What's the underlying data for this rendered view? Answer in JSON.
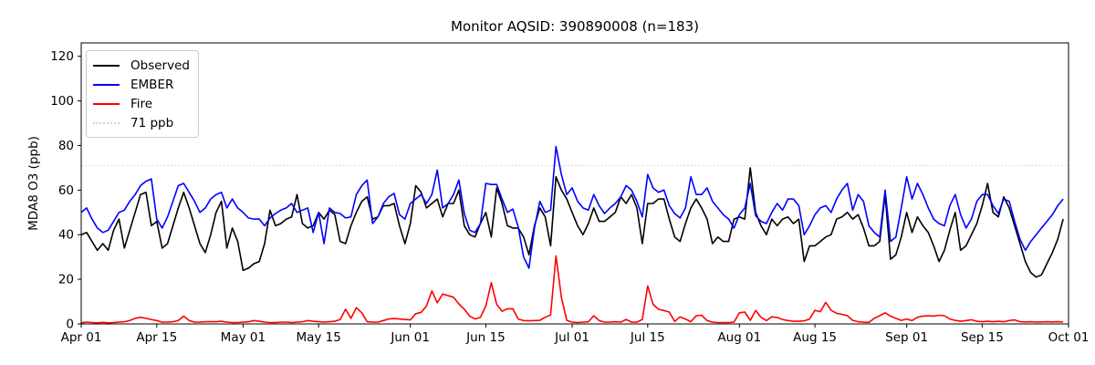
{
  "title": "Monitor AQSID: 390890008 (n=183)",
  "axes": {
    "ylabel": "MDA8 O3 (ppb)",
    "yticks": [
      0,
      20,
      40,
      60,
      80,
      100,
      120
    ],
    "xticks": [
      {
        "label": "Apr 01",
        "day": 0
      },
      {
        "label": "Apr 15",
        "day": 14
      },
      {
        "label": "May 01",
        "day": 30
      },
      {
        "label": "May 15",
        "day": 44
      },
      {
        "label": "Jun 01",
        "day": 61
      },
      {
        "label": "Jun 15",
        "day": 75
      },
      {
        "label": "Jul 01",
        "day": 91
      },
      {
        "label": "Jul 15",
        "day": 105
      },
      {
        "label": "Aug 01",
        "day": 122
      },
      {
        "label": "Aug 15",
        "day": 136
      },
      {
        "label": "Sep 01",
        "day": 153
      },
      {
        "label": "Sep 15",
        "day": 167
      },
      {
        "label": "Oct 01",
        "day": 183
      }
    ]
  },
  "legend": {
    "items": [
      {
        "label": "Observed",
        "color": "#000000",
        "style": "solid"
      },
      {
        "label": "EMBER",
        "color": "#0000ff",
        "style": "solid"
      },
      {
        "label": "Fire",
        "color": "#ff0000",
        "style": "solid"
      },
      {
        "label": "71 ppb",
        "color": "#d3d3d3",
        "style": "dotted"
      }
    ]
  },
  "chart_data": {
    "type": "line",
    "title": "Monitor AQSID: 390890008 (n=183)",
    "xlabel": "",
    "ylabel": "MDA8 O3 (ppb)",
    "x_unit": "days since Apr 01",
    "x_range_days": [
      0,
      183
    ],
    "n_points": 183,
    "ylim": [
      0,
      126
    ],
    "grid": false,
    "legend_position": "upper left",
    "threshold": {
      "label": "71 ppb",
      "value": 71,
      "color": "#d3d3d3",
      "style": "dotted"
    },
    "series": [
      {
        "name": "Observed",
        "color": "#000000",
        "values": [
          40,
          41,
          37,
          33,
          36,
          33,
          42,
          47,
          34,
          42,
          50,
          58,
          59,
          44,
          46,
          34,
          36,
          44,
          52,
          59,
          52,
          44,
          36,
          32,
          40,
          50,
          55,
          34,
          43,
          37,
          24,
          25,
          27,
          28,
          36,
          51,
          44,
          45,
          47,
          48,
          58,
          45,
          43,
          44,
          50,
          47,
          51,
          49,
          37,
          36,
          44,
          50,
          55,
          57,
          47,
          48,
          53,
          53,
          54,
          44,
          36,
          45,
          62,
          59,
          52,
          54,
          56,
          48,
          54,
          54,
          60,
          44,
          40,
          39,
          45,
          50,
          39,
          61,
          54,
          44,
          43,
          43,
          39,
          31,
          44,
          52,
          48,
          35,
          66,
          60,
          56,
          50,
          44,
          40,
          45,
          52,
          46,
          46,
          48,
          50,
          57,
          54,
          58,
          52,
          36,
          54,
          54,
          56,
          56,
          47,
          39,
          37,
          45,
          52,
          56,
          52,
          47,
          36,
          39,
          37,
          37,
          47,
          48,
          47,
          70,
          50,
          44,
          40,
          47,
          44,
          47,
          48,
          45,
          47,
          28,
          35,
          35,
          37,
          39,
          40,
          47,
          48,
          50,
          47,
          49,
          43,
          35,
          35,
          37,
          58,
          29,
          31,
          39,
          50,
          41,
          48,
          44,
          41,
          35,
          28,
          33,
          42,
          50,
          33,
          35,
          40,
          45,
          53,
          63,
          50,
          48,
          57,
          52,
          44,
          36,
          28,
          23,
          21,
          22,
          27,
          32,
          38,
          47
        ]
      },
      {
        "name": "EMBER",
        "color": "#0000ff",
        "values": [
          50,
          52,
          47,
          43,
          41,
          42,
          46,
          50,
          51,
          55,
          58,
          62,
          64,
          65,
          47,
          43,
          48,
          55,
          62,
          63,
          59,
          55,
          50,
          52,
          56,
          58,
          59,
          52,
          56,
          52,
          50,
          47.5,
          47,
          47,
          44,
          47.5,
          49.5,
          51,
          52,
          54,
          50,
          51,
          52,
          41,
          50,
          36,
          52,
          50,
          49.5,
          47.5,
          48,
          58,
          62,
          64.5,
          45,
          48,
          54,
          57,
          58.5,
          49,
          47,
          54,
          56,
          58,
          54,
          58,
          69,
          52,
          54,
          58,
          64.5,
          49.5,
          42,
          41,
          45,
          63,
          62.5,
          62.5,
          56,
          50,
          51.5,
          43.5,
          30,
          25,
          43,
          55,
          50,
          51,
          79.5,
          67,
          58,
          61,
          55,
          52,
          51,
          58,
          53,
          49.5,
          52,
          54,
          57,
          62,
          60,
          55,
          48,
          67,
          61,
          59,
          60,
          53,
          49.5,
          47.5,
          52,
          66,
          58,
          58,
          61,
          55,
          52,
          49,
          47,
          43,
          49,
          52,
          63,
          48.5,
          46,
          45,
          50,
          54,
          51,
          56,
          56,
          53,
          40,
          44,
          49,
          52,
          53,
          50,
          56,
          60,
          63,
          51,
          58,
          55,
          44,
          41,
          39,
          60,
          37,
          39,
          52,
          66,
          56,
          63,
          58,
          52,
          47,
          45,
          44,
          53,
          58,
          49,
          43,
          47,
          55,
          58,
          58,
          53,
          49.5,
          56,
          55,
          46,
          38,
          33,
          37,
          40,
          43,
          46,
          49,
          53,
          56
        ]
      },
      {
        "name": "Fire",
        "color": "#ff0000",
        "values": [
          0.5,
          0.8,
          0.6,
          0.5,
          0.7,
          0.5,
          0.6,
          0.8,
          1,
          1.5,
          2.5,
          3,
          2.5,
          2,
          1.5,
          0.8,
          0.8,
          1,
          1.5,
          3.5,
          1.5,
          0.8,
          0.8,
          1,
          1,
          1,
          1.2,
          0.8,
          0.6,
          0.6,
          0.8,
          1,
          1.5,
          1.2,
          0.8,
          0.6,
          0.6,
          0.8,
          0.8,
          0.6,
          0.8,
          1,
          1.5,
          1.2,
          1,
          0.8,
          1,
          1.2,
          2,
          6.6,
          2.5,
          7.3,
          5,
          1,
          0.8,
          0.8,
          1.5,
          2.2,
          2.4,
          2.2,
          2,
          1.8,
          4.6,
          5.2,
          8,
          14.8,
          9.5,
          13.4,
          12.7,
          12,
          9,
          6.6,
          3.5,
          2.2,
          3,
          8,
          18.5,
          8.8,
          5.7,
          6.8,
          6.8,
          2.2,
          1.5,
          1.4,
          1.5,
          1.6,
          3,
          4,
          30.5,
          12,
          1.6,
          0.8,
          0.6,
          0.8,
          1,
          3.7,
          1.5,
          0.8,
          0.8,
          1,
          0.8,
          2,
          0.8,
          0.8,
          2,
          17,
          8.8,
          6.6,
          6,
          5.3,
          1.1,
          3.2,
          2.2,
          1,
          3.7,
          3.9,
          1.5,
          0.8,
          0.6,
          0.6,
          0.6,
          0.8,
          5,
          5.3,
          1.6,
          6,
          3,
          1.5,
          3.2,
          2.9,
          2,
          1.5,
          1.2,
          1.2,
          1.4,
          2.2,
          6.1,
          5.5,
          9.7,
          6.1,
          4.8,
          4.3,
          3.7,
          1.6,
          1,
          0.8,
          0.7,
          2.5,
          3.7,
          5,
          3.5,
          2.5,
          1.6,
          2.2,
          1.5,
          3,
          3.5,
          3.7,
          3.5,
          3.9,
          3.7,
          2.2,
          1.6,
          1.2,
          1.5,
          1.9,
          1.2,
          1,
          1.2,
          1,
          1.2,
          1,
          1.5,
          1.8,
          1,
          0.9,
          1,
          0.8,
          0.9,
          1,
          0.9,
          1,
          0.9
        ]
      }
    ]
  }
}
